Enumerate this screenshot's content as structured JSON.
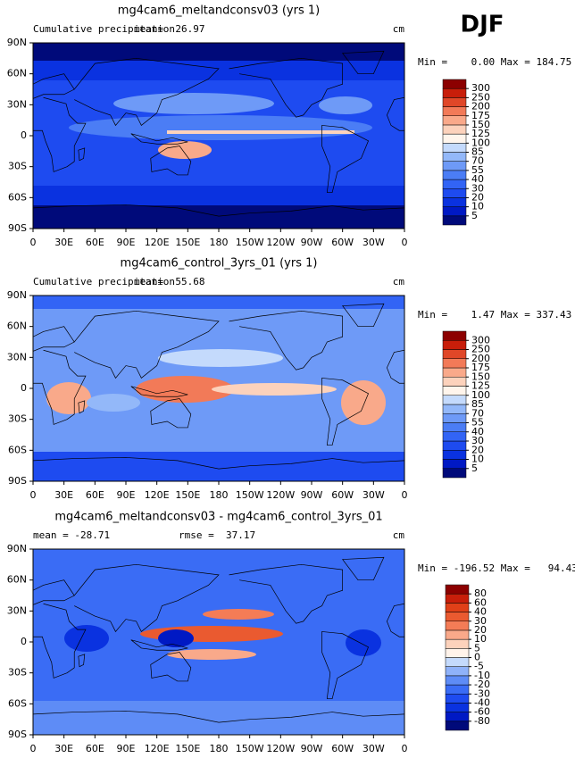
{
  "header": {
    "season": "DJF"
  },
  "lat_labels": [
    "90N",
    "60N",
    "30N",
    "0",
    "30S",
    "60S",
    "90S"
  ],
  "lon_labels": [
    "0",
    "30E",
    "60E",
    "90E",
    "120E",
    "150E",
    "180",
    "150W",
    "120W",
    "90W",
    "60W",
    "30W",
    "0"
  ],
  "panels": [
    {
      "title": "mg4cam6_meltandconsv03 (yrs 1)",
      "left_label": "Cumulative precipitation",
      "mean_label": "mean=  26.97",
      "units": "cm",
      "minmax": "Min =    0.00 Max = 184.75",
      "colorbar": {
        "levels": [
          5,
          10,
          20,
          30,
          40,
          55,
          70,
          85,
          100,
          125,
          150,
          175,
          200,
          250,
          300
        ],
        "colors": [
          "#000a7a",
          "#0019c4",
          "#0a32e0",
          "#1e4bf0",
          "#3264f5",
          "#4b7df5",
          "#6e9af7",
          "#93b8f9",
          "#c4dafc",
          "#fff5ec",
          "#fcd2bc",
          "#f9a98a",
          "#f27a58",
          "#e04728",
          "#c81e0a",
          "#8c0000"
        ]
      }
    },
    {
      "title": "mg4cam6_control_3yrs_01 (yrs 1)",
      "left_label": "Cumulative precipitation",
      "mean_label": "mean=  55.68",
      "units": "cm",
      "minmax": "Min =    1.47 Max = 337.43",
      "colorbar": {
        "levels": [
          5,
          10,
          20,
          30,
          40,
          55,
          70,
          85,
          100,
          125,
          150,
          175,
          200,
          250,
          300
        ],
        "colors": [
          "#000a7a",
          "#0019c4",
          "#0a32e0",
          "#1e4bf0",
          "#3264f5",
          "#4b7df5",
          "#6e9af7",
          "#93b8f9",
          "#c4dafc",
          "#fff5ec",
          "#fcd2bc",
          "#f9a98a",
          "#f27a58",
          "#e04728",
          "#c81e0a",
          "#8c0000"
        ]
      }
    },
    {
      "title": "mg4cam6_meltandconsv03 - mg4cam6_control_3yrs_01",
      "left_label": "mean = -28.71",
      "mean_label": "rmse =  37.17",
      "units": "cm",
      "minmax": "Min = -196.52 Max =   94.43",
      "colorbar": {
        "levels": [
          -80,
          -60,
          -40,
          -30,
          -20,
          -10,
          -5,
          0,
          5,
          10,
          20,
          30,
          40,
          60,
          80
        ],
        "colors": [
          "#000a7a",
          "#0019c4",
          "#0a32e0",
          "#1e4bf0",
          "#3a6cf5",
          "#5e8cf6",
          "#8fb2f9",
          "#c4dafc",
          "#fff3ea",
          "#fcd2bc",
          "#f9a98a",
          "#f47c56",
          "#ea5a30",
          "#e04018",
          "#c81e0a",
          "#8c0000"
        ]
      }
    }
  ]
}
